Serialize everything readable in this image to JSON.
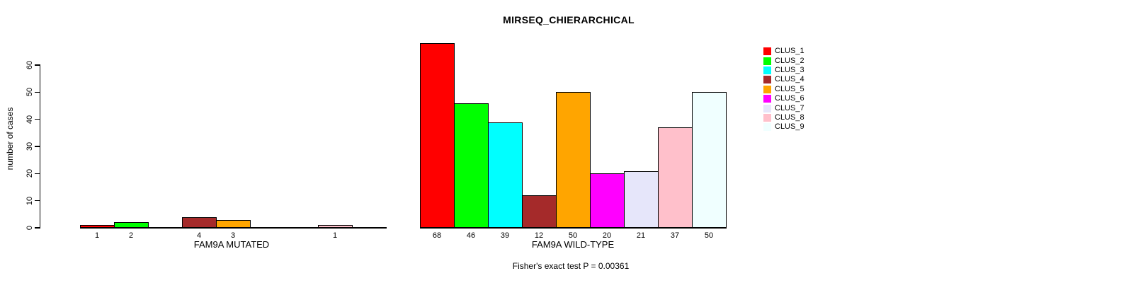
{
  "title": "MIRSEQ_CHIERARCHICAL",
  "footer": "Fisher's exact test P = 0.00361",
  "y_axis": {
    "label": "number of cases",
    "ticks": [
      0,
      10,
      20,
      30,
      40,
      50,
      60
    ]
  },
  "legend": {
    "position": "right",
    "items": [
      {
        "label": "CLUS_1",
        "color": "#FF0000"
      },
      {
        "label": "CLUS_2",
        "color": "#00FF00"
      },
      {
        "label": "CLUS_3",
        "color": "#00FFFF"
      },
      {
        "label": "CLUS_4",
        "color": "#A52A2A"
      },
      {
        "label": "CLUS_5",
        "color": "#FFA500"
      },
      {
        "label": "CLUS_6",
        "color": "#FF00FF"
      },
      {
        "label": "CLUS_7",
        "color": "#E6E6FA"
      },
      {
        "label": "CLUS_8",
        "color": "#FFC0CB"
      },
      {
        "label": "CLUS_9",
        "color": "#F0FFFF"
      }
    ]
  },
  "chart_data": [
    {
      "type": "bar",
      "panel": "left",
      "title": "MIRSEQ_CHIERARCHICAL",
      "xlabel": "FAM9A MUTATED",
      "ylabel": "number of cases",
      "ylim": [
        0,
        60
      ],
      "grid": false,
      "categories": [
        "CLUS_1",
        "CLUS_2",
        "CLUS_3",
        "CLUS_4",
        "CLUS_5",
        "CLUS_6",
        "CLUS_7",
        "CLUS_8",
        "CLUS_9"
      ],
      "values": [
        1,
        2,
        0,
        4,
        3,
        0,
        0,
        1,
        0
      ],
      "bar_labels": [
        "1",
        "2",
        "",
        "4",
        "3",
        "",
        "",
        "1",
        ""
      ],
      "colors": [
        "#FF0000",
        "#00FF00",
        "#00FFFF",
        "#A52A2A",
        "#FFA500",
        "#FF00FF",
        "#E6E6FA",
        "#FFC0CB",
        "#F0FFFF"
      ]
    },
    {
      "type": "bar",
      "panel": "right",
      "title": "MIRSEQ_CHIERARCHICAL",
      "xlabel": "FAM9A WILD-TYPE",
      "ylabel": "number of cases",
      "ylim": [
        0,
        60
      ],
      "grid": false,
      "categories": [
        "CLUS_1",
        "CLUS_2",
        "CLUS_3",
        "CLUS_4",
        "CLUS_5",
        "CLUS_6",
        "CLUS_7",
        "CLUS_8",
        "CLUS_9"
      ],
      "values": [
        68,
        46,
        39,
        12,
        50,
        20,
        21,
        37,
        50
      ],
      "bar_labels": [
        "68",
        "46",
        "39",
        "12",
        "50",
        "20",
        "21",
        "37",
        "50"
      ],
      "colors": [
        "#FF0000",
        "#00FF00",
        "#00FFFF",
        "#A52A2A",
        "#FFA500",
        "#FF00FF",
        "#E6E6FA",
        "#FFC0CB",
        "#F0FFFF"
      ]
    }
  ]
}
